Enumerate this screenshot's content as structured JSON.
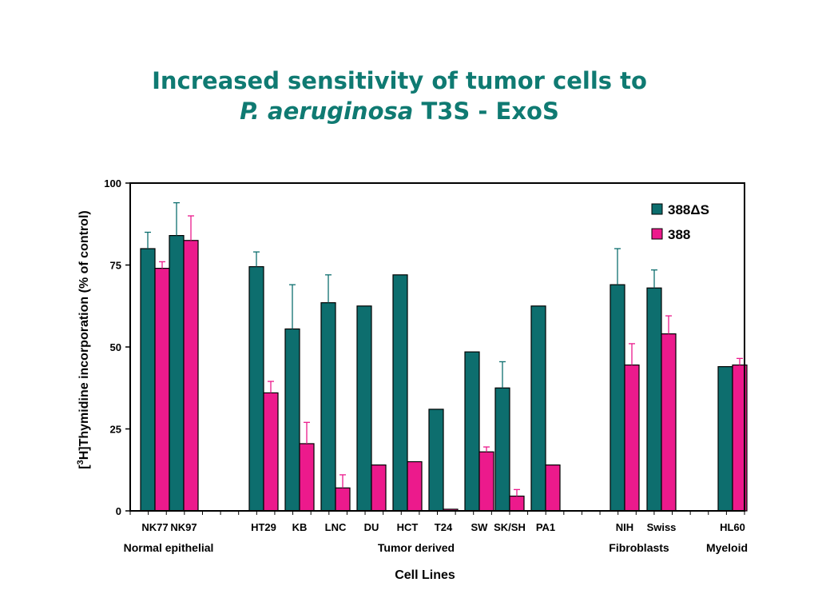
{
  "title_line1": "Increased sensitivity of tumor cells to",
  "title_line2_italic": "P. aeruginosa",
  "title_line2_rest": " T3S - ExoS",
  "chart_data": {
    "type": "bar",
    "title": "Increased sensitivity of tumor cells to P. aeruginosa T3S - ExoS",
    "xlabel": "Cell Lines",
    "ylabel_main": "H]Thymidine incorporation (% of control)",
    "ylabel_prefix": "[",
    "ylabel_sup": "3",
    "ylim": [
      0,
      100
    ],
    "yticks": [
      0,
      25,
      50,
      75,
      100
    ],
    "grid": false,
    "legend_position": "top-right",
    "colors": {
      "388dS": "#0d6e6e",
      "388": "#ec1a8c"
    },
    "categories": [
      "NK77",
      "NK97",
      "HT29",
      "KB",
      "LNC",
      "DU",
      "HCT",
      "T24",
      "SW",
      "SK/SH",
      "PA1",
      "NIH",
      "Swiss",
      "HL60"
    ],
    "category_group": [
      "Normal epithelial",
      "Normal epithelial",
      "Tumor derived",
      "Tumor derived",
      "Tumor derived",
      "Tumor derived",
      "Tumor derived",
      "Tumor derived",
      "Tumor derived",
      "Tumor derived",
      "Tumor derived",
      "Fibroblasts",
      "Fibroblasts",
      "Myeloid"
    ],
    "groups": [
      "Normal epithelial",
      "Tumor derived",
      "Fibroblasts",
      "Myeloid"
    ],
    "series": [
      {
        "name": "388ΔS",
        "values": [
          80,
          84,
          74.5,
          55.5,
          63.5,
          62.5,
          72,
          31,
          48.5,
          37.5,
          62.5,
          69,
          68,
          44
        ],
        "error_plus": [
          5,
          10,
          4.5,
          13.5,
          8.5,
          null,
          null,
          null,
          null,
          8,
          null,
          11,
          5.5,
          null
        ]
      },
      {
        "name": "388",
        "values": [
          74,
          82.5,
          36,
          20.5,
          7,
          14,
          15,
          0.5,
          18,
          4.5,
          14,
          44.5,
          54,
          44.5
        ],
        "error_plus": [
          2,
          7.5,
          3.5,
          6.5,
          4,
          null,
          null,
          null,
          1.5,
          2,
          null,
          6.5,
          5.5,
          2
        ]
      }
    ]
  }
}
